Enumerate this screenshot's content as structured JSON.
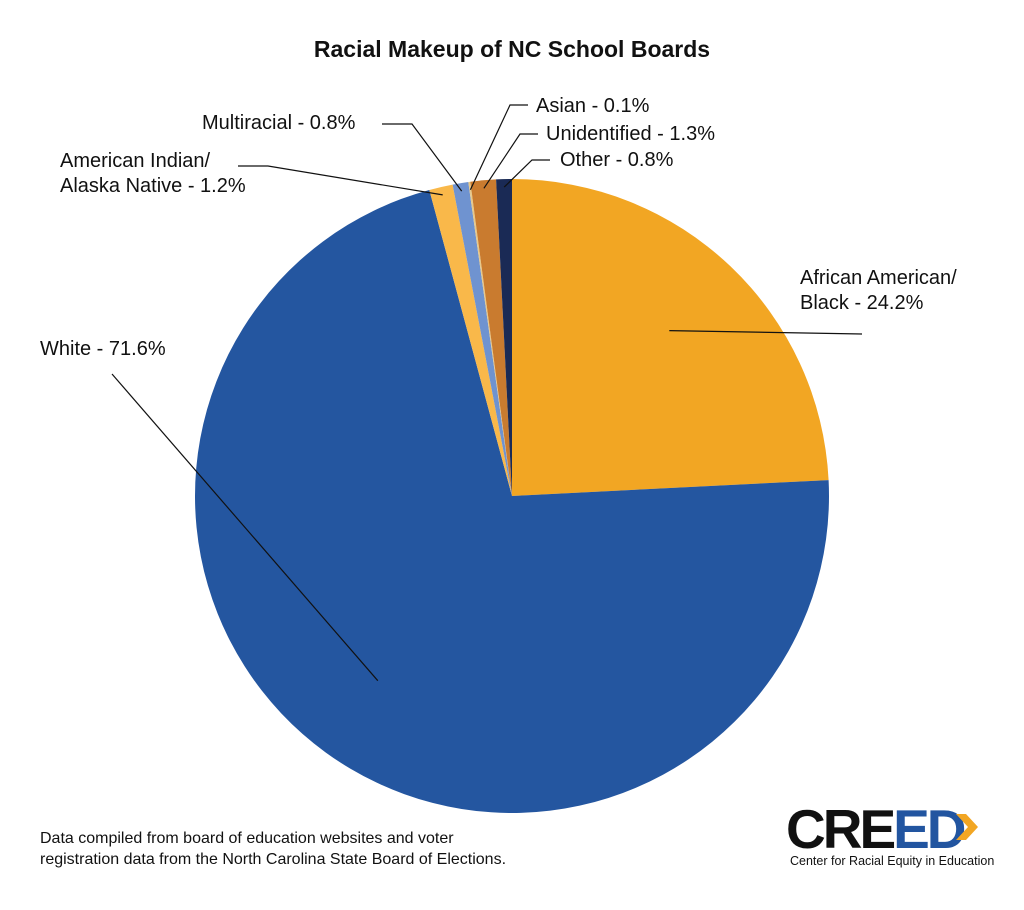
{
  "chart_data": {
    "type": "pie",
    "title": "Racial Makeup of NC School Boards",
    "slices": [
      {
        "name": "African American/ Black",
        "value": 24.2,
        "color": "#f2a623",
        "label_lines": [
          "African American/",
          "Black - 24.2%"
        ]
      },
      {
        "name": "White",
        "value": 71.6,
        "color": "#2456a0",
        "label_lines": [
          "White - 71.6%"
        ]
      },
      {
        "name": "American Indian/ Alaska Native",
        "value": 1.2,
        "color": "#f9b84a",
        "label_lines": [
          "American Indian/",
          "Alaska Native - 1.2%"
        ]
      },
      {
        "name": "Multiracial",
        "value": 0.8,
        "color": "#6f93d0",
        "label_lines": [
          "Multiracial - 0.8%"
        ]
      },
      {
        "name": "Asian",
        "value": 0.1,
        "color": "#e8c98a",
        "label_lines": [
          "Asian - 0.1%"
        ]
      },
      {
        "name": "Unidentified",
        "value": 1.3,
        "color": "#c97b2f",
        "label_lines": [
          "Unidentified - 1.3%"
        ]
      },
      {
        "name": "Other",
        "value": 0.8,
        "color": "#1a2a55",
        "label_lines": [
          "Other - 0.8%"
        ]
      }
    ],
    "start_angle_deg": 90,
    "direction": "clockwise",
    "legend": "none"
  },
  "note": {
    "line1": "Data compiled from board of education websites and voter",
    "line2": "registration data from the North Carolina State Board of Elections."
  },
  "logo": {
    "word_black": "CRE",
    "word_blue": "ED",
    "caption": "Center for Racial Equity in Education",
    "blue": "#2255a0",
    "orange": "#f2a623"
  }
}
